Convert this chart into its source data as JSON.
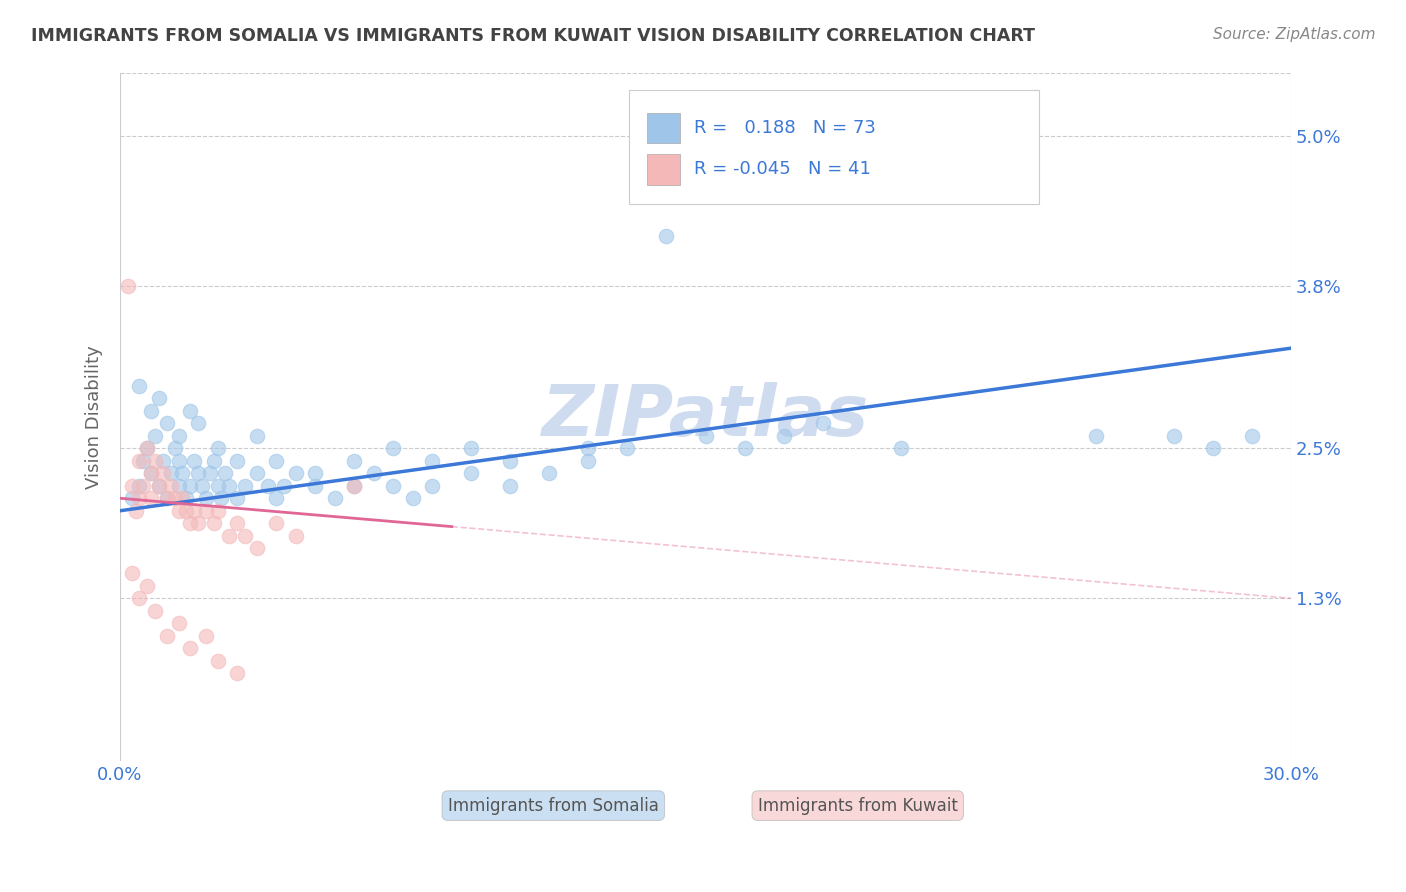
{
  "title": "IMMIGRANTS FROM SOMALIA VS IMMIGRANTS FROM KUWAIT VISION DISABILITY CORRELATION CHART",
  "source": "Source: ZipAtlas.com",
  "ylabel": "Vision Disability",
  "xlim": [
    0.0,
    0.3
  ],
  "ylim": [
    0.0,
    0.055
  ],
  "yticks": [
    0.013,
    0.025,
    0.038,
    0.05
  ],
  "ytick_labels": [
    "1.3%",
    "2.5%",
    "3.8%",
    "5.0%"
  ],
  "xtick_labels": [
    "0.0%",
    "30.0%"
  ],
  "somalia_color": "#9fc5e8",
  "kuwait_color": "#f4b8b8",
  "trend_somalia_color": "#3c78d8",
  "trend_kuwait_color": "#e06696",
  "background_color": "#ffffff",
  "grid_color": "#cccccc",
  "title_color": "#434343",
  "axis_label_color": "#666666",
  "legend_text_color": "#3c78d8",
  "watermark_color": "#cfdcf0",
  "label_somalia": "Immigrants from Somalia",
  "label_kuwait": "Immigrants from Kuwait",
  "R_somalia": "0.188",
  "N_somalia": "73",
  "R_kuwait": "-0.045",
  "N_kuwait": "41",
  "trend_somalia_start_y": 0.02,
  "trend_somalia_end_y": 0.033,
  "trend_kuwait_start_y": 0.021,
  "trend_kuwait_solid_end_x": 0.085,
  "trend_kuwait_end_y": 0.013,
  "somalia_scatter_x": [
    0.003,
    0.005,
    0.006,
    0.007,
    0.008,
    0.009,
    0.01,
    0.011,
    0.012,
    0.013,
    0.014,
    0.015,
    0.015,
    0.016,
    0.017,
    0.018,
    0.019,
    0.02,
    0.021,
    0.022,
    0.023,
    0.024,
    0.025,
    0.026,
    0.027,
    0.028,
    0.03,
    0.032,
    0.035,
    0.038,
    0.04,
    0.042,
    0.045,
    0.05,
    0.055,
    0.06,
    0.065,
    0.07,
    0.075,
    0.08,
    0.09,
    0.1,
    0.11,
    0.12,
    0.13,
    0.14,
    0.15,
    0.16,
    0.17,
    0.18,
    0.005,
    0.008,
    0.01,
    0.012,
    0.015,
    0.018,
    0.02,
    0.025,
    0.03,
    0.035,
    0.04,
    0.05,
    0.06,
    0.07,
    0.08,
    0.09,
    0.1,
    0.12,
    0.2,
    0.25,
    0.27,
    0.28,
    0.29
  ],
  "somalia_scatter_y": [
    0.021,
    0.022,
    0.024,
    0.025,
    0.023,
    0.026,
    0.022,
    0.024,
    0.021,
    0.023,
    0.025,
    0.022,
    0.024,
    0.023,
    0.021,
    0.022,
    0.024,
    0.023,
    0.022,
    0.021,
    0.023,
    0.024,
    0.022,
    0.021,
    0.023,
    0.022,
    0.021,
    0.022,
    0.023,
    0.022,
    0.021,
    0.022,
    0.023,
    0.022,
    0.021,
    0.022,
    0.023,
    0.022,
    0.021,
    0.022,
    0.023,
    0.022,
    0.023,
    0.024,
    0.025,
    0.042,
    0.026,
    0.025,
    0.026,
    0.027,
    0.03,
    0.028,
    0.029,
    0.027,
    0.026,
    0.028,
    0.027,
    0.025,
    0.024,
    0.026,
    0.024,
    0.023,
    0.024,
    0.025,
    0.024,
    0.025,
    0.024,
    0.025,
    0.025,
    0.026,
    0.026,
    0.025,
    0.026
  ],
  "kuwait_scatter_x": [
    0.002,
    0.003,
    0.004,
    0.005,
    0.005,
    0.006,
    0.007,
    0.008,
    0.008,
    0.009,
    0.01,
    0.011,
    0.012,
    0.013,
    0.014,
    0.015,
    0.016,
    0.017,
    0.018,
    0.019,
    0.02,
    0.022,
    0.024,
    0.025,
    0.028,
    0.03,
    0.032,
    0.035,
    0.04,
    0.045,
    0.003,
    0.005,
    0.007,
    0.009,
    0.012,
    0.015,
    0.018,
    0.022,
    0.025,
    0.03,
    0.06
  ],
  "kuwait_scatter_y": [
    0.038,
    0.022,
    0.02,
    0.021,
    0.024,
    0.022,
    0.025,
    0.023,
    0.021,
    0.024,
    0.022,
    0.023,
    0.021,
    0.022,
    0.021,
    0.02,
    0.021,
    0.02,
    0.019,
    0.02,
    0.019,
    0.02,
    0.019,
    0.02,
    0.018,
    0.019,
    0.018,
    0.017,
    0.019,
    0.018,
    0.015,
    0.013,
    0.014,
    0.012,
    0.01,
    0.011,
    0.009,
    0.01,
    0.008,
    0.007,
    0.022
  ]
}
